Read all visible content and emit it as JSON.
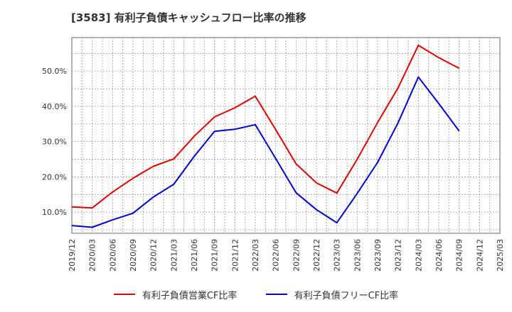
{
  "chart_data": {
    "type": "line",
    "title": "[3583]  有利子負債キャッシュフロー比率の推移",
    "xlabel": "",
    "ylabel": "",
    "x": [
      "2019/12",
      "2020/03",
      "2020/06",
      "2020/09",
      "2020/12",
      "2021/03",
      "2021/06",
      "2021/09",
      "2021/12",
      "2022/03",
      "2022/06",
      "2022/09",
      "2022/12",
      "2023/03",
      "2023/06",
      "2023/09",
      "2023/12",
      "2024/03",
      "2024/06",
      "2024/09",
      "2024/12",
      "2025/03"
    ],
    "ylim": [
      4,
      59.5
    ],
    "yticks": [
      10,
      20,
      30,
      40,
      50
    ],
    "ytick_labels": [
      "10.0%",
      "20.0%",
      "30.0%",
      "40.0%",
      "50.0%"
    ],
    "grid": true,
    "legend_position": "bottom-center",
    "series": [
      {
        "name": "有利子負債営業CF比率",
        "color": "#dd0000",
        "values": [
          11.5,
          11.2,
          15.7,
          19.6,
          23.0,
          25.1,
          31.5,
          37.0,
          39.6,
          42.9,
          33.4,
          23.7,
          18.3,
          15.4,
          25.0,
          35.4,
          45.2,
          57.3,
          53.8,
          50.8,
          null,
          null
        ]
      },
      {
        "name": "有利子負債フリーCF比率",
        "color": "#0000cc",
        "values": [
          6.2,
          5.7,
          7.8,
          9.7,
          14.3,
          17.9,
          25.8,
          32.9,
          33.5,
          34.8,
          25.2,
          15.5,
          10.7,
          7.0,
          15.3,
          24.1,
          35.3,
          48.3,
          40.8,
          33.0,
          null,
          null
        ]
      }
    ]
  }
}
